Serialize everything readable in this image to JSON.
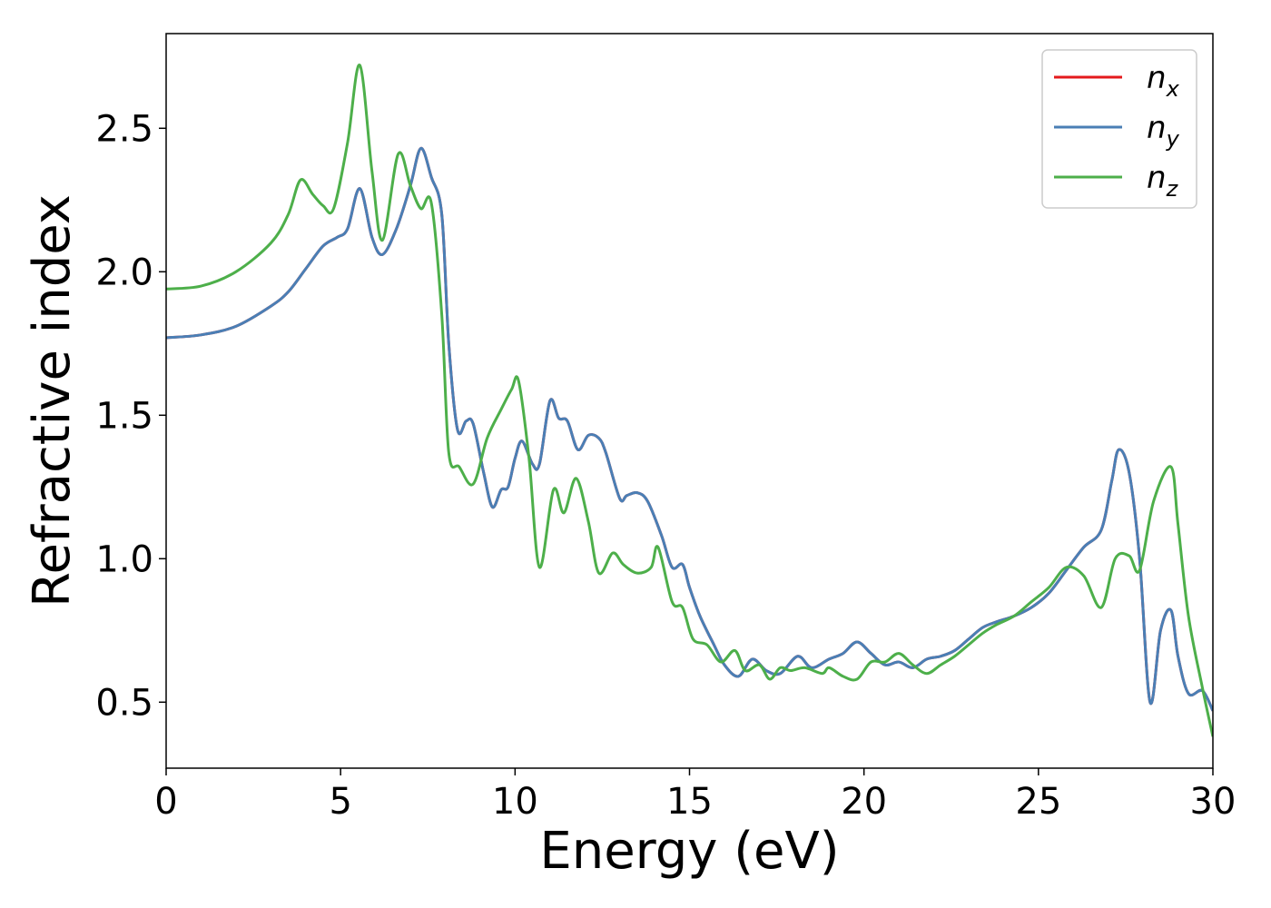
{
  "chart_data": {
    "type": "line",
    "title": "",
    "xlabel": "Energy (eV)",
    "ylabel": "Refractive index",
    "xlim": [
      0,
      30
    ],
    "ylim": [
      0.27,
      2.83
    ],
    "xticks": [
      0,
      5,
      10,
      15,
      20,
      25,
      30
    ],
    "xtick_labels": [
      "0",
      "5",
      "10",
      "15",
      "20",
      "25",
      "30"
    ],
    "yticks": [
      0.5,
      1.0,
      1.5,
      2.0,
      2.5
    ],
    "ytick_labels": [
      "0.5",
      "1.0",
      "1.5",
      "2.0",
      "2.5"
    ],
    "grid": false,
    "legend_position": "top-right",
    "series": [
      {
        "name": "n_x",
        "legend_base": "n",
        "legend_sub": "x",
        "color": "#e41a1c",
        "x": [
          0,
          1,
          2,
          3,
          3.5,
          4,
          4.5,
          4.9,
          5.2,
          5.55,
          5.9,
          6.2,
          6.6,
          7.0,
          7.3,
          7.6,
          7.9,
          8.1,
          8.35,
          8.6,
          8.8,
          9.1,
          9.35,
          9.6,
          9.8,
          10.0,
          10.2,
          10.5,
          10.7,
          11.0,
          11.25,
          11.5,
          11.8,
          12.1,
          12.4,
          12.6,
          13.0,
          13.2,
          13.5,
          13.8,
          14.2,
          14.5,
          14.8,
          15.0,
          15.3,
          15.7,
          16.0,
          16.4,
          16.8,
          17.2,
          17.6,
          18.1,
          18.5,
          19.0,
          19.4,
          19.8,
          20.2,
          20.6,
          21.0,
          21.4,
          21.8,
          22.2,
          22.6,
          23.0,
          23.4,
          23.8,
          24.3,
          24.8,
          25.3,
          25.8,
          26.3,
          26.8,
          27.1,
          27.3,
          27.6,
          27.9,
          28.2,
          28.5,
          28.8,
          29.0,
          29.3,
          29.7,
          30.0
        ],
        "y": [
          1.77,
          1.78,
          1.81,
          1.88,
          1.93,
          2.01,
          2.09,
          2.12,
          2.15,
          2.29,
          2.12,
          2.06,
          2.15,
          2.3,
          2.43,
          2.33,
          2.2,
          1.75,
          1.45,
          1.48,
          1.47,
          1.3,
          1.18,
          1.24,
          1.25,
          1.35,
          1.41,
          1.33,
          1.33,
          1.55,
          1.49,
          1.48,
          1.38,
          1.43,
          1.42,
          1.37,
          1.21,
          1.22,
          1.23,
          1.2,
          1.08,
          0.97,
          0.98,
          0.9,
          0.8,
          0.7,
          0.63,
          0.59,
          0.65,
          0.61,
          0.6,
          0.66,
          0.62,
          0.65,
          0.67,
          0.71,
          0.67,
          0.63,
          0.64,
          0.62,
          0.65,
          0.66,
          0.68,
          0.72,
          0.76,
          0.78,
          0.8,
          0.83,
          0.88,
          0.96,
          1.04,
          1.1,
          1.27,
          1.38,
          1.3,
          1.0,
          0.5,
          0.75,
          0.82,
          0.66,
          0.53,
          0.54,
          0.47
        ]
      },
      {
        "name": "n_y",
        "legend_base": "n",
        "legend_sub": "y",
        "color": "#4a7fb5",
        "x": [
          0,
          1,
          2,
          3,
          3.5,
          4,
          4.5,
          4.9,
          5.2,
          5.55,
          5.9,
          6.2,
          6.6,
          7.0,
          7.3,
          7.6,
          7.9,
          8.1,
          8.35,
          8.6,
          8.8,
          9.1,
          9.35,
          9.6,
          9.8,
          10.0,
          10.2,
          10.5,
          10.7,
          11.0,
          11.25,
          11.5,
          11.8,
          12.1,
          12.4,
          12.6,
          13.0,
          13.2,
          13.5,
          13.8,
          14.2,
          14.5,
          14.8,
          15.0,
          15.3,
          15.7,
          16.0,
          16.4,
          16.8,
          17.2,
          17.6,
          18.1,
          18.5,
          19.0,
          19.4,
          19.8,
          20.2,
          20.6,
          21.0,
          21.4,
          21.8,
          22.2,
          22.6,
          23.0,
          23.4,
          23.8,
          24.3,
          24.8,
          25.3,
          25.8,
          26.3,
          26.8,
          27.1,
          27.3,
          27.6,
          27.9,
          28.2,
          28.5,
          28.8,
          29.0,
          29.3,
          29.7,
          30.0
        ],
        "y": [
          1.77,
          1.78,
          1.81,
          1.88,
          1.93,
          2.01,
          2.09,
          2.12,
          2.15,
          2.29,
          2.12,
          2.06,
          2.15,
          2.3,
          2.43,
          2.33,
          2.2,
          1.75,
          1.45,
          1.48,
          1.47,
          1.3,
          1.18,
          1.24,
          1.25,
          1.35,
          1.41,
          1.33,
          1.33,
          1.55,
          1.49,
          1.48,
          1.38,
          1.43,
          1.42,
          1.37,
          1.21,
          1.22,
          1.23,
          1.2,
          1.08,
          0.97,
          0.98,
          0.9,
          0.8,
          0.7,
          0.63,
          0.59,
          0.65,
          0.61,
          0.6,
          0.66,
          0.62,
          0.65,
          0.67,
          0.71,
          0.67,
          0.63,
          0.64,
          0.62,
          0.65,
          0.66,
          0.68,
          0.72,
          0.76,
          0.78,
          0.8,
          0.83,
          0.88,
          0.96,
          1.04,
          1.1,
          1.27,
          1.38,
          1.3,
          1.0,
          0.5,
          0.75,
          0.82,
          0.66,
          0.53,
          0.54,
          0.47
        ]
      },
      {
        "name": "n_z",
        "legend_base": "n",
        "legend_sub": "z",
        "color": "#4daf4a",
        "x": [
          0,
          1,
          2,
          3,
          3.5,
          3.85,
          4.2,
          4.5,
          4.8,
          5.2,
          5.55,
          5.9,
          6.2,
          6.65,
          7.0,
          7.3,
          7.6,
          7.9,
          8.1,
          8.4,
          8.8,
          9.2,
          9.6,
          9.9,
          10.1,
          10.4,
          10.7,
          11.1,
          11.4,
          11.75,
          12.1,
          12.4,
          12.8,
          13.1,
          13.5,
          13.9,
          14.1,
          14.5,
          14.8,
          15.1,
          15.5,
          15.9,
          16.3,
          16.6,
          17.0,
          17.3,
          17.6,
          17.9,
          18.3,
          18.8,
          19.0,
          19.4,
          19.8,
          20.2,
          20.6,
          21.0,
          21.4,
          21.8,
          22.2,
          22.6,
          23.0,
          23.4,
          23.8,
          24.3,
          24.8,
          25.3,
          25.8,
          26.3,
          26.8,
          27.2,
          27.6,
          27.9,
          28.3,
          28.8,
          29.0,
          29.3,
          29.7,
          30.0
        ],
        "y": [
          1.94,
          1.95,
          2.0,
          2.1,
          2.2,
          2.32,
          2.27,
          2.23,
          2.22,
          2.45,
          2.72,
          2.35,
          2.11,
          2.41,
          2.3,
          2.22,
          2.24,
          1.85,
          1.37,
          1.32,
          1.26,
          1.42,
          1.52,
          1.59,
          1.62,
          1.35,
          0.97,
          1.24,
          1.16,
          1.28,
          1.13,
          0.95,
          1.02,
          0.98,
          0.95,
          0.97,
          1.04,
          0.85,
          0.83,
          0.72,
          0.7,
          0.64,
          0.68,
          0.61,
          0.63,
          0.58,
          0.62,
          0.61,
          0.62,
          0.6,
          0.62,
          0.59,
          0.58,
          0.64,
          0.64,
          0.67,
          0.63,
          0.6,
          0.63,
          0.66,
          0.7,
          0.74,
          0.77,
          0.8,
          0.85,
          0.9,
          0.97,
          0.94,
          0.83,
          1.0,
          1.01,
          0.96,
          1.2,
          1.32,
          1.12,
          0.8,
          0.55,
          0.38
        ]
      }
    ]
  }
}
